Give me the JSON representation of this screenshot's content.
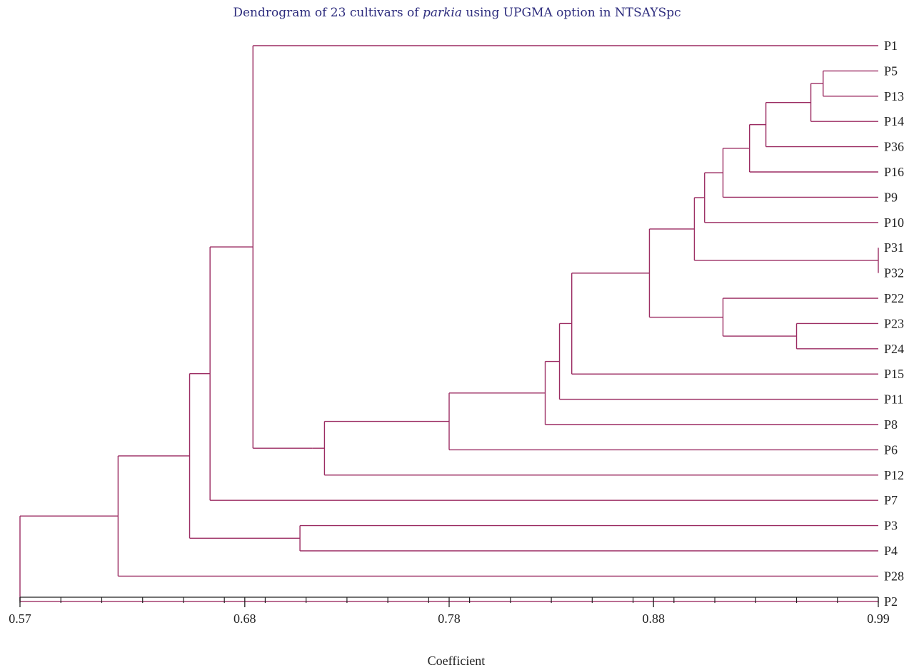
{
  "chart_data": {
    "type": "dendrogram",
    "title": {
      "before": "Dendrogram of 23 cultivars of ",
      "italic": "parkia",
      "after": " using UPGMA option in NTSAYSpc"
    },
    "xlabel": "Coefficient",
    "xlim": [
      0.57,
      0.99
    ],
    "x_ticks": [
      "0.57",
      "0.68",
      "0.78",
      "0.88",
      "0.99"
    ],
    "minor_tick_step": 0.02,
    "line_color": "#9b2c62",
    "leaves": [
      "P1",
      "P5",
      "P13",
      "P14",
      "P36",
      "P16",
      "P9",
      "P10",
      "P31",
      "P32",
      "P22",
      "P23",
      "P24",
      "P15",
      "P11",
      "P8",
      "P6",
      "P12",
      "P7",
      "P3",
      "P4",
      "P28",
      "P2"
    ],
    "tree": {
      "sim": 0.57,
      "children": [
        {
          "sim": 0.618,
          "children": [
            {
              "sim": 0.653,
              "children": [
                {
                  "sim": 0.663,
                  "children": [
                    {
                      "sim": 0.684,
                      "children": [
                        {
                          "leaf": "P1"
                        },
                        {
                          "sim": 0.713,
                          "children": [
                            {
                              "sim": 0.719,
                              "children": [
                                {
                                  "sim": 0.78,
                                  "children": [
                                    {
                                      "sim": 0.827,
                                      "children": [
                                        {
                                          "sim": 0.834,
                                          "children": [
                                            {
                                              "sim": 0.84,
                                              "children": [
                                                {
                                                  "sim": 0.878,
                                                  "children": [
                                                    {
                                                      "sim": 0.9,
                                                      "children": [
                                                        {
                                                          "sim": 0.905,
                                                          "children": [
                                                            {
                                                              "sim": 0.914,
                                                              "children": [
                                                                {
                                                                  "sim": 0.927,
                                                                  "children": [
                                                                    {
                                                                      "sim": 0.935,
                                                                      "children": [
                                                                        {
                                                                          "sim": 0.957,
                                                                          "children": [
                                                                            {
                                                                              "sim": 0.963,
                                                                              "children": [
                                                                                {
                                                                                  "leaf": "P5"
                                                                                },
                                                                                {
                                                                                  "leaf": "P13"
                                                                                }
                                                                              ]
                                                                            },
                                                                            {
                                                                              "leaf": "P14"
                                                                            }
                                                                          ]
                                                                        },
                                                                        {
                                                                          "leaf": "P36"
                                                                        }
                                                                      ]
                                                                    },
                                                                    {
                                                                      "leaf": "P16"
                                                                    }
                                                                  ]
                                                                },
                                                                {
                                                                  "leaf": "P9"
                                                                }
                                                              ]
                                                            },
                                                            {
                                                              "leaf": "P10"
                                                            }
                                                          ]
                                                        },
                                                        {
                                                          "sim": 0.99,
                                                          "children": [
                                                            {
                                                              "leaf": "P31"
                                                            },
                                                            {
                                                              "leaf": "P32"
                                                            }
                                                          ]
                                                        }
                                                      ]
                                                    },
                                                    {
                                                      "sim": 0.914,
                                                      "children": [
                                                        {
                                                          "leaf": "P22"
                                                        },
                                                        {
                                                          "sim": 0.95,
                                                          "children": [
                                                            {
                                                              "leaf": "P23"
                                                            },
                                                            {
                                                              "leaf": "P24"
                                                            }
                                                          ]
                                                        }
                                                      ]
                                                    }
                                                  ]
                                                },
                                                {
                                                  "leaf": "P15"
                                                }
                                              ]
                                            },
                                            {
                                              "leaf": "P11"
                                            }
                                          ]
                                        },
                                        {
                                          "leaf": "P8"
                                        }
                                      ]
                                    },
                                    {
                                      "leaf": "P6"
                                    }
                                  ]
                                },
                                {
                                  "leaf": "P12"
                                }
                              ]
                            }
                          ]
                        }
                      ]
                    },
                    {
                      "leaf": "P7"
                    }
                  ]
                },
                {
                  "sim": 0.707,
                  "children": [
                    {
                      "leaf": "P3"
                    },
                    {
                      "leaf": "P4"
                    }
                  ]
                }
              ]
            },
            {
              "leaf": "P28"
            }
          ]
        },
        {
          "leaf": "P2"
        }
      ]
    }
  }
}
